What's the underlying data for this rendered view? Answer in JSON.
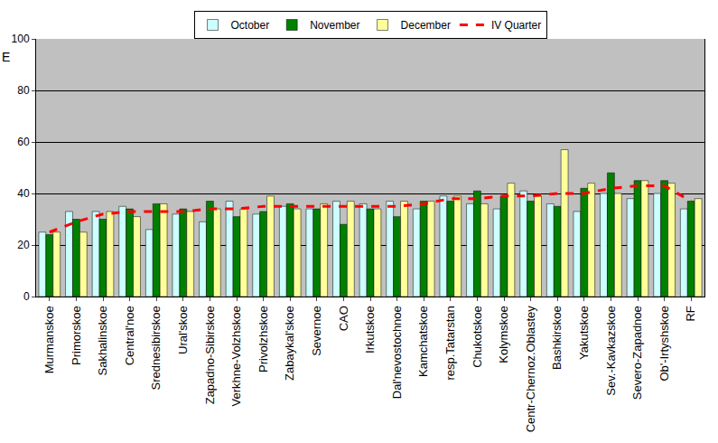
{
  "chart_data": {
    "type": "bar",
    "ylabel": "E",
    "categories": [
      "Murmanskoe",
      "Primorskoe",
      "Sakhalinskoe",
      "Central'noe",
      "Srednesibirskoe",
      "Ural'skoe",
      "Zapadno-Sibirskoe",
      "Verkhne-Volzhskoe",
      "Privolzhskoe",
      "Zabaykal'skoe",
      "Severnoe",
      "CAO",
      "Irkutskoe",
      "Dal'nevostochnoe",
      "Kamchatskoe",
      "resp.Tatarstan",
      "Chukotskoe",
      "Kolymskoe",
      "Centr-Chernoz.Oblastey",
      "Bashkirskoe",
      "Yakutskoe",
      "Sev.-Kavkazskoe",
      "Severo-Zapadnoe",
      "Ob'-Irtyshskoe",
      "RF"
    ],
    "series": [
      {
        "name": "October",
        "type": "bar",
        "color": "#ccffff",
        "values": [
          25,
          33,
          33,
          35,
          26,
          32,
          29,
          37,
          32,
          35,
          34,
          37,
          36,
          37,
          34,
          39,
          36,
          34,
          41,
          36,
          33,
          40,
          38,
          40,
          34
        ]
      },
      {
        "name": "November",
        "type": "bar",
        "color": "#008000",
        "values": [
          24,
          30,
          30,
          34,
          36,
          34,
          37,
          31,
          33,
          36,
          34,
          28,
          34,
          31,
          37,
          37,
          41,
          39,
          37,
          35,
          42,
          48,
          45,
          45,
          37
        ]
      },
      {
        "name": "December",
        "type": "bar",
        "color": "#ffff99",
        "values": [
          25,
          25,
          33,
          31,
          36,
          33,
          34,
          34,
          39,
          34,
          36,
          37,
          34,
          37,
          37,
          39,
          36,
          44,
          39,
          57,
          44,
          40,
          45,
          44,
          38
        ]
      },
      {
        "name": "IV Quarter",
        "type": "line",
        "color": "#ff0000",
        "line_style": "dashed",
        "values": [
          25,
          29,
          32,
          33,
          33,
          33,
          34,
          34,
          35,
          35,
          35,
          35,
          35,
          35,
          36,
          38,
          38,
          39,
          39,
          40,
          40,
          42,
          43,
          43,
          37
        ]
      }
    ],
    "ylim": [
      0,
      100
    ],
    "yticks": [
      0,
      20,
      40,
      60,
      80,
      100
    ],
    "grid": true,
    "legend": "top"
  }
}
